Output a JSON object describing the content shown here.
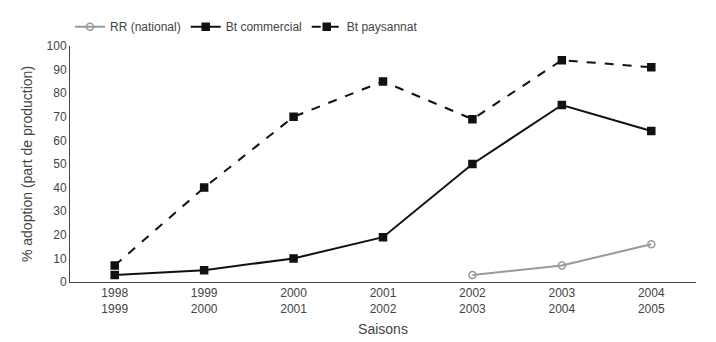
{
  "chart_data": {
    "type": "line",
    "categories": [
      "1998\n1999",
      "1999\n2000",
      "2000\n2001",
      "2001\n2002",
      "2002\n2003",
      "2003\n2004",
      "2004\n2005"
    ],
    "xlabel": "Saisons",
    "ylabel": "% adoption (part de production)",
    "ylim": [
      0,
      100
    ],
    "yticks": [
      0,
      10,
      20,
      30,
      40,
      50,
      60,
      70,
      80,
      90,
      100
    ],
    "grid": false,
    "legend": "top",
    "series": [
      {
        "name": "RR (national)",
        "color": "#999999",
        "marker": "circle-open",
        "line_style": "solid",
        "values": [
          null,
          null,
          null,
          null,
          3,
          7,
          16
        ]
      },
      {
        "name": "Bt commercial",
        "color": "#111111",
        "marker": "square",
        "line_style": "solid",
        "values": [
          3,
          5,
          10,
          19,
          50,
          75,
          64
        ]
      },
      {
        "name": "Bt paysannat",
        "color": "#111111",
        "marker": "square",
        "line_style": "dashed",
        "values": [
          7,
          40,
          70,
          85,
          69,
          94,
          91
        ]
      }
    ]
  }
}
